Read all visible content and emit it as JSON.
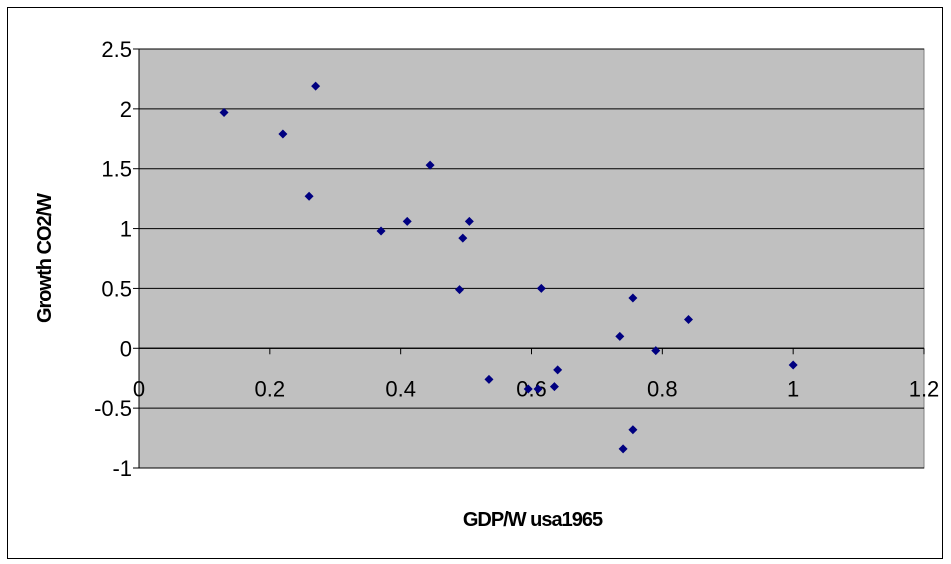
{
  "chart_data": {
    "type": "scatter",
    "title": "",
    "xlabel": "GDP/W usa1965",
    "ylabel": "Growth CO2/W",
    "xlim": [
      0,
      1.2
    ],
    "ylim": [
      -1,
      2.5
    ],
    "x_ticks": [
      "0",
      "0.2",
      "0.4",
      "0.6",
      "0.8",
      "1",
      "1.2"
    ],
    "y_ticks": [
      "2.5",
      "2",
      "1.5",
      "1",
      "0.5",
      "0",
      "-0.5",
      "-1"
    ],
    "grid": true,
    "legend": "none",
    "colors": {
      "plot_background": "#c0c0c0",
      "marker": "#000080",
      "gridline": "#000000"
    },
    "points": [
      {
        "x": 0.13,
        "y": 1.97
      },
      {
        "x": 0.22,
        "y": 1.79
      },
      {
        "x": 0.26,
        "y": 1.27
      },
      {
        "x": 0.27,
        "y": 2.19
      },
      {
        "x": 0.37,
        "y": 0.98
      },
      {
        "x": 0.41,
        "y": 1.06
      },
      {
        "x": 0.445,
        "y": 1.53
      },
      {
        "x": 0.49,
        "y": 0.49
      },
      {
        "x": 0.495,
        "y": 0.92
      },
      {
        "x": 0.505,
        "y": 1.06
      },
      {
        "x": 0.535,
        "y": -0.26
      },
      {
        "x": 0.595,
        "y": -0.34
      },
      {
        "x": 0.61,
        "y": -0.34
      },
      {
        "x": 0.615,
        "y": 0.5
      },
      {
        "x": 0.635,
        "y": -0.32
      },
      {
        "x": 0.64,
        "y": -0.18
      },
      {
        "x": 0.735,
        "y": 0.1
      },
      {
        "x": 0.74,
        "y": -0.84
      },
      {
        "x": 0.755,
        "y": 0.42
      },
      {
        "x": 0.755,
        "y": -0.68
      },
      {
        "x": 0.79,
        "y": -0.02
      },
      {
        "x": 0.84,
        "y": 0.24
      },
      {
        "x": 1.0,
        "y": -0.14
      }
    ]
  }
}
